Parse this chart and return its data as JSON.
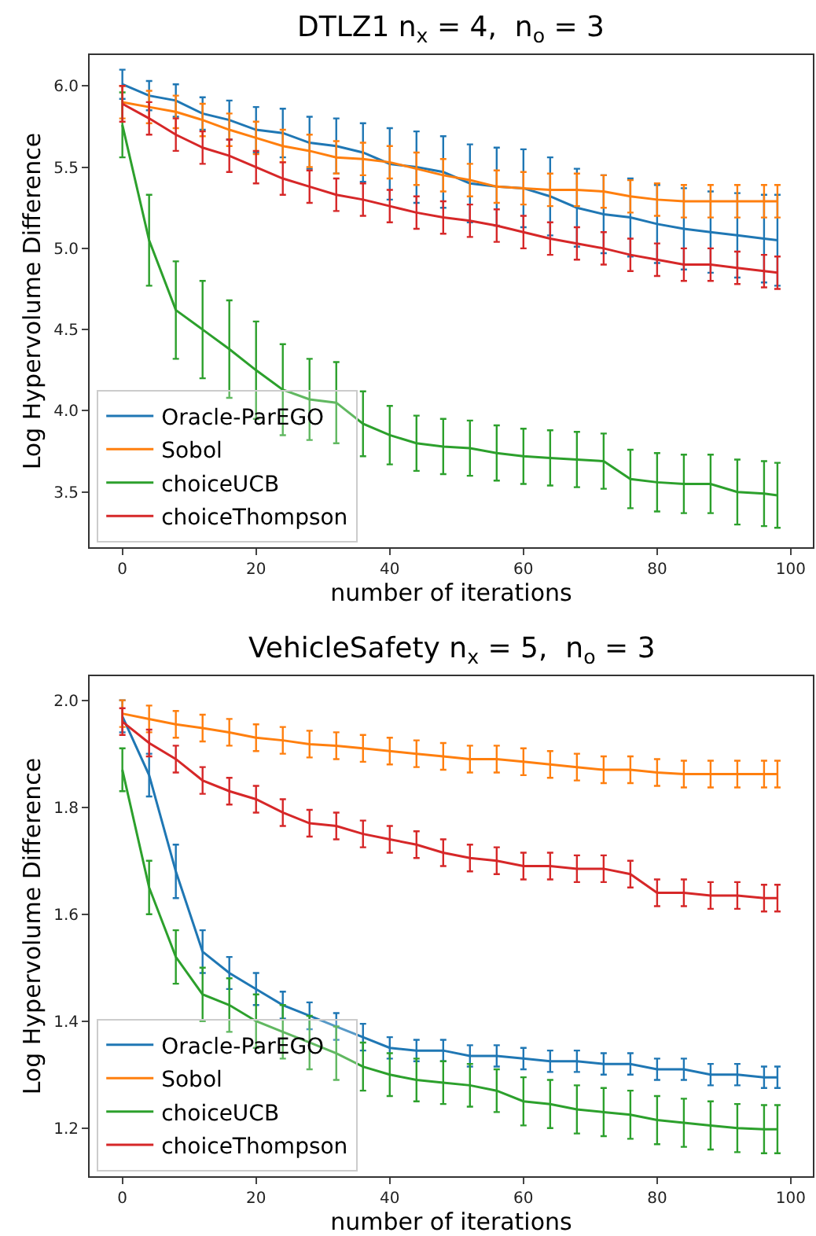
{
  "chart_data": [
    {
      "type": "line",
      "title": "DTLZ1 n$_{x}$ = 4,  n$_{o}$ = 3",
      "xlabel": "number of iterations",
      "ylabel": "Log Hypervolume Difference",
      "x": [
        0,
        4,
        8,
        12,
        16,
        20,
        24,
        28,
        32,
        36,
        40,
        44,
        48,
        52,
        56,
        60,
        64,
        68,
        72,
        76,
        80,
        84,
        88,
        92,
        96,
        98
      ],
      "xlim": [
        -4.9,
        103.3
      ],
      "xticks": [
        0,
        20,
        40,
        60,
        80,
        100
      ],
      "ylim": [
        3.16,
        6.19
      ],
      "yticks": [
        3.5,
        {
          "value": 4,
          "label": "4.0"
        },
        4.5,
        {
          "value": 5,
          "label": "5.0"
        },
        5.5,
        {
          "value": 6,
          "label": "6.0"
        }
      ],
      "legend": "bottom left",
      "marker": "none",
      "line_style": "solid",
      "series": [
        {
          "name": "Oracle-ParEGO",
          "color": "#1f77b4",
          "values": [
            6.01,
            5.94,
            5.91,
            5.83,
            5.79,
            5.73,
            5.71,
            5.65,
            5.63,
            5.59,
            5.52,
            5.5,
            5.47,
            5.4,
            5.38,
            5.37,
            5.32,
            5.25,
            5.21,
            5.19,
            5.15,
            5.12,
            5.1,
            5.08,
            5.06,
            5.05
          ],
          "errors": [
            0.09,
            0.09,
            0.1,
            0.1,
            0.12,
            0.14,
            0.15,
            0.16,
            0.17,
            0.18,
            0.22,
            0.22,
            0.22,
            0.24,
            0.24,
            0.24,
            0.24,
            0.24,
            0.24,
            0.24,
            0.24,
            0.25,
            0.25,
            0.26,
            0.27,
            0.28
          ]
        },
        {
          "name": "Sobol",
          "color": "#ff7f0e",
          "values": [
            5.9,
            5.87,
            5.84,
            5.79,
            5.73,
            5.68,
            5.63,
            5.6,
            5.56,
            5.55,
            5.53,
            5.49,
            5.45,
            5.42,
            5.38,
            5.37,
            5.36,
            5.36,
            5.35,
            5.32,
            5.3,
            5.29,
            5.29,
            5.29,
            5.29,
            5.29
          ],
          "errors": [
            0.1,
            0.1,
            0.1,
            0.1,
            0.1,
            0.1,
            0.1,
            0.1,
            0.1,
            0.1,
            0.1,
            0.1,
            0.1,
            0.1,
            0.1,
            0.1,
            0.1,
            0.1,
            0.1,
            0.1,
            0.1,
            0.1,
            0.1,
            0.1,
            0.1,
            0.1
          ]
        },
        {
          "name": "choiceUCB",
          "color": "#2ca02c",
          "values": [
            5.76,
            5.05,
            4.62,
            4.5,
            4.38,
            4.25,
            4.13,
            4.07,
            4.05,
            3.92,
            3.85,
            3.8,
            3.78,
            3.77,
            3.74,
            3.72,
            3.71,
            3.7,
            3.69,
            3.58,
            3.56,
            3.55,
            3.55,
            3.5,
            3.49,
            3.48
          ],
          "errors": [
            0.2,
            0.28,
            0.3,
            0.3,
            0.3,
            0.3,
            0.28,
            0.25,
            0.25,
            0.2,
            0.18,
            0.17,
            0.17,
            0.17,
            0.17,
            0.17,
            0.17,
            0.17,
            0.17,
            0.18,
            0.18,
            0.18,
            0.18,
            0.2,
            0.2,
            0.2
          ]
        },
        {
          "name": "choiceThompson",
          "color": "#d62728",
          "values": [
            5.89,
            5.8,
            5.7,
            5.62,
            5.57,
            5.5,
            5.43,
            5.38,
            5.33,
            5.3,
            5.26,
            5.22,
            5.19,
            5.17,
            5.14,
            5.1,
            5.06,
            5.03,
            5.0,
            4.96,
            4.93,
            4.9,
            4.9,
            4.88,
            4.86,
            4.85
          ],
          "errors": [
            0.11,
            0.1,
            0.1,
            0.1,
            0.1,
            0.1,
            0.1,
            0.1,
            0.1,
            0.1,
            0.1,
            0.1,
            0.1,
            0.1,
            0.1,
            0.1,
            0.1,
            0.1,
            0.1,
            0.1,
            0.1,
            0.1,
            0.1,
            0.1,
            0.1,
            0.1
          ]
        }
      ]
    },
    {
      "type": "line",
      "title": "VehicleSafety n$_{x}$ = 5,  n$_{o}$ = 3",
      "xlabel": "number of iterations",
      "ylabel": "Log Hypervolume Difference",
      "x": [
        0,
        4,
        8,
        12,
        16,
        20,
        24,
        28,
        32,
        36,
        40,
        44,
        48,
        52,
        56,
        60,
        64,
        68,
        72,
        76,
        80,
        84,
        88,
        92,
        96,
        98
      ],
      "xlim": [
        -4.9,
        103.3
      ],
      "xticks": [
        0,
        20,
        40,
        60,
        80,
        100
      ],
      "ylim": [
        1.11,
        2.045
      ],
      "yticks": [
        1.2,
        1.4,
        1.6,
        1.8,
        {
          "value": 2,
          "label": "2.0"
        }
      ],
      "legend": "bottom left",
      "marker": "none",
      "line_style": "solid",
      "series": [
        {
          "name": "Oracle-ParEGO",
          "color": "#1f77b4",
          "values": [
            1.97,
            1.86,
            1.68,
            1.53,
            1.49,
            1.46,
            1.43,
            1.41,
            1.39,
            1.37,
            1.35,
            1.345,
            1.345,
            1.335,
            1.335,
            1.33,
            1.325,
            1.325,
            1.32,
            1.32,
            1.31,
            1.31,
            1.3,
            1.3,
            1.295,
            1.295
          ],
          "errors": [
            0.03,
            0.04,
            0.05,
            0.04,
            0.03,
            0.03,
            0.025,
            0.025,
            0.025,
            0.025,
            0.02,
            0.02,
            0.02,
            0.02,
            0.02,
            0.02,
            0.02,
            0.02,
            0.02,
            0.02,
            0.02,
            0.02,
            0.02,
            0.02,
            0.02,
            0.02
          ]
        },
        {
          "name": "Sobol",
          "color": "#ff7f0e",
          "values": [
            1.975,
            1.965,
            1.955,
            1.948,
            1.94,
            1.93,
            1.925,
            1.918,
            1.915,
            1.91,
            1.905,
            1.9,
            1.895,
            1.89,
            1.89,
            1.885,
            1.88,
            1.875,
            1.87,
            1.87,
            1.865,
            1.862,
            1.862,
            1.862,
            1.862,
            1.862
          ],
          "errors": [
            0.025,
            0.025,
            0.025,
            0.025,
            0.025,
            0.025,
            0.025,
            0.025,
            0.025,
            0.025,
            0.025,
            0.025,
            0.025,
            0.025,
            0.025,
            0.025,
            0.025,
            0.025,
            0.025,
            0.025,
            0.025,
            0.025,
            0.025,
            0.025,
            0.025,
            0.025
          ]
        },
        {
          "name": "choiceUCB",
          "color": "#2ca02c",
          "values": [
            1.87,
            1.65,
            1.52,
            1.45,
            1.43,
            1.4,
            1.38,
            1.36,
            1.34,
            1.315,
            1.3,
            1.29,
            1.285,
            1.28,
            1.27,
            1.25,
            1.245,
            1.235,
            1.23,
            1.225,
            1.215,
            1.21,
            1.205,
            1.2,
            1.198,
            1.198
          ],
          "errors": [
            0.04,
            0.05,
            0.05,
            0.05,
            0.05,
            0.05,
            0.05,
            0.05,
            0.05,
            0.045,
            0.04,
            0.04,
            0.04,
            0.04,
            0.04,
            0.045,
            0.045,
            0.045,
            0.045,
            0.045,
            0.045,
            0.045,
            0.045,
            0.045,
            0.045,
            0.045
          ]
        },
        {
          "name": "choiceThompson",
          "color": "#d62728",
          "values": [
            1.96,
            1.92,
            1.89,
            1.85,
            1.83,
            1.815,
            1.79,
            1.77,
            1.765,
            1.75,
            1.74,
            1.73,
            1.715,
            1.705,
            1.7,
            1.69,
            1.69,
            1.685,
            1.685,
            1.675,
            1.64,
            1.64,
            1.635,
            1.635,
            1.63,
            1.63
          ],
          "errors": [
            0.025,
            0.025,
            0.025,
            0.025,
            0.025,
            0.025,
            0.025,
            0.025,
            0.025,
            0.025,
            0.025,
            0.025,
            0.025,
            0.025,
            0.025,
            0.025,
            0.025,
            0.025,
            0.025,
            0.025,
            0.025,
            0.025,
            0.025,
            0.025,
            0.025,
            0.025
          ]
        }
      ]
    }
  ]
}
